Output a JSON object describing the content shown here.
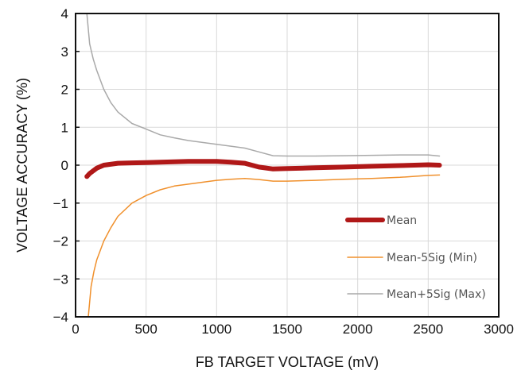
{
  "chart_data": {
    "type": "line",
    "xlabel": "FB TARGET VOLTAGE (mV)",
    "ylabel": "VOLTAGE ACCURACY (%)",
    "xlim": [
      0,
      3000
    ],
    "ylim": [
      -4,
      4
    ],
    "x_ticks": [
      "0",
      "500",
      "1000",
      "1500",
      "2000",
      "2500",
      "3000"
    ],
    "y_ticks": [
      "4",
      "3",
      "2",
      "1",
      "0",
      "−1",
      "−2",
      "−3",
      "−4"
    ],
    "grid": true,
    "legend_position": "lower-right",
    "series": [
      {
        "name": "Mean",
        "color": "#b01818",
        "x": [
          80,
          100,
          150,
          200,
          300,
          400,
          500,
          600,
          700,
          800,
          900,
          1000,
          1100,
          1200,
          1300,
          1400,
          1500,
          1700,
          1900,
          2100,
          2300,
          2500,
          2580
        ],
        "y": [
          -0.3,
          -0.22,
          -0.08,
          0.0,
          0.05,
          0.06,
          0.07,
          0.08,
          0.09,
          0.1,
          0.1,
          0.1,
          0.08,
          0.05,
          -0.05,
          -0.1,
          -0.09,
          -0.07,
          -0.05,
          -0.03,
          -0.01,
          0.01,
          0.0
        ]
      },
      {
        "name": "Mean-5Sig (Min)",
        "color": "#f0902c",
        "x": [
          90,
          110,
          130,
          150,
          200,
          250,
          300,
          400,
          500,
          600,
          700,
          800,
          900,
          1000,
          1100,
          1200,
          1300,
          1400,
          1500,
          1700,
          1900,
          2100,
          2300,
          2500,
          2580
        ],
        "y": [
          -4.0,
          -3.2,
          -2.8,
          -2.5,
          -2.0,
          -1.65,
          -1.35,
          -1.0,
          -0.8,
          -0.65,
          -0.55,
          -0.5,
          -0.45,
          -0.4,
          -0.37,
          -0.35,
          -0.38,
          -0.42,
          -0.42,
          -0.4,
          -0.37,
          -0.35,
          -0.32,
          -0.27,
          -0.26
        ]
      },
      {
        "name": "Mean+5Sig (Max)",
        "color": "#a9a9a9",
        "x": [
          80,
          100,
          125,
          150,
          200,
          250,
          300,
          400,
          500,
          600,
          700,
          800,
          900,
          1000,
          1100,
          1200,
          1300,
          1400,
          1500,
          1700,
          1900,
          2100,
          2300,
          2500,
          2580
        ],
        "y": [
          4.0,
          3.2,
          2.8,
          2.5,
          2.0,
          1.65,
          1.4,
          1.1,
          0.95,
          0.8,
          0.72,
          0.65,
          0.6,
          0.55,
          0.5,
          0.45,
          0.35,
          0.25,
          0.24,
          0.24,
          0.25,
          0.26,
          0.27,
          0.27,
          0.24
        ]
      }
    ]
  }
}
